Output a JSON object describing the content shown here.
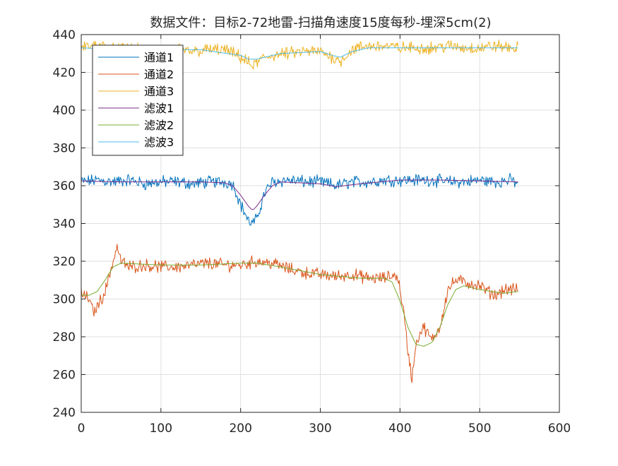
{
  "chart_data": {
    "type": "line",
    "title": "数据文件：目标2-72地雷-扫描角速度15度每秒-埋深5cm(2)",
    "xlabel": "",
    "ylabel": "",
    "xlim": [
      0,
      600
    ],
    "ylim": [
      240,
      440
    ],
    "xticks": [
      0,
      100,
      200,
      300,
      400,
      500,
      600
    ],
    "yticks": [
      240,
      260,
      280,
      300,
      320,
      340,
      360,
      380,
      400,
      420,
      440
    ],
    "grid": true,
    "legend_position": "top-left",
    "series": [
      {
        "name": "通道1",
        "color": "#0072BD",
        "kind": "raw",
        "x": [
          0,
          20,
          40,
          60,
          80,
          100,
          120,
          140,
          160,
          180,
          190,
          195,
          200,
          205,
          210,
          215,
          220,
          225,
          230,
          240,
          260,
          280,
          300,
          320,
          340,
          360,
          380,
          400,
          420,
          440,
          460,
          480,
          500,
          520,
          540,
          548
        ],
        "y": [
          362,
          363,
          362,
          363,
          361,
          362,
          362,
          361,
          362,
          362,
          361,
          356,
          350,
          346,
          341,
          340,
          342,
          349,
          356,
          362,
          363,
          362,
          362,
          360,
          362,
          362,
          363,
          363,
          363,
          363,
          362,
          362,
          363,
          362,
          363,
          361
        ]
      },
      {
        "name": "通道2",
        "color": "#D95319",
        "kind": "raw",
        "x": [
          0,
          10,
          15,
          20,
          30,
          40,
          45,
          50,
          60,
          80,
          100,
          120,
          140,
          160,
          180,
          200,
          220,
          240,
          260,
          280,
          300,
          320,
          340,
          360,
          380,
          395,
          400,
          405,
          410,
          415,
          420,
          425,
          430,
          440,
          450,
          460,
          470,
          480,
          490,
          500,
          510,
          520,
          530,
          540,
          548
        ],
        "y": [
          303,
          300,
          293,
          296,
          304,
          320,
          328,
          320,
          317,
          318,
          317,
          317,
          318,
          319,
          318,
          318,
          320,
          319,
          316,
          314,
          313,
          312,
          313,
          311,
          311,
          313,
          306,
          292,
          272,
          258,
          276,
          282,
          285,
          278,
          285,
          305,
          310,
          309,
          308,
          307,
          304,
          302,
          305,
          305,
          305
        ]
      },
      {
        "name": "通道3",
        "color": "#EDB120",
        "kind": "raw",
        "x": [
          0,
          20,
          40,
          60,
          80,
          100,
          120,
          140,
          160,
          180,
          200,
          210,
          215,
          220,
          230,
          240,
          260,
          280,
          300,
          320,
          325,
          330,
          340,
          360,
          380,
          400,
          420,
          440,
          460,
          480,
          500,
          520,
          540,
          548
        ],
        "y": [
          433,
          435,
          432,
          433,
          431,
          432,
          432,
          431,
          432,
          432,
          428,
          425,
          423,
          425,
          428,
          429,
          430,
          431,
          431,
          427,
          426,
          428,
          432,
          434,
          434,
          433,
          433,
          433,
          434,
          433,
          433,
          434,
          433,
          433
        ]
      },
      {
        "name": "滤波1",
        "color": "#7E2F8E",
        "kind": "smooth",
        "x": [
          0,
          50,
          100,
          150,
          180,
          190,
          200,
          210,
          215,
          220,
          230,
          240,
          250,
          300,
          320,
          330,
          350,
          400,
          450,
          500,
          548
        ],
        "y": [
          362.5,
          362,
          362,
          362,
          361.5,
          360,
          355,
          349,
          347,
          349,
          355,
          360,
          362,
          361,
          359.5,
          360,
          361,
          363,
          363,
          362.5,
          362
        ]
      },
      {
        "name": "滤波2",
        "color": "#77AC30",
        "kind": "smooth",
        "x": [
          0,
          10,
          20,
          30,
          40,
          50,
          100,
          150,
          200,
          220,
          250,
          300,
          350,
          380,
          390,
          400,
          410,
          420,
          430,
          440,
          450,
          460,
          470,
          480,
          500,
          530,
          548
        ],
        "y": [
          302,
          302,
          304,
          310,
          317,
          319,
          318,
          318,
          319,
          319,
          317,
          313,
          311,
          311,
          309,
          299,
          285,
          276,
          275,
          277,
          285,
          297,
          305,
          307,
          305,
          303,
          304
        ]
      },
      {
        "name": "滤波3",
        "color": "#4DBEEE",
        "kind": "smooth",
        "x": [
          0,
          50,
          100,
          150,
          200,
          210,
          220,
          230,
          250,
          300,
          315,
          325,
          340,
          360,
          400,
          450,
          500,
          548
        ],
        "y": [
          433,
          432,
          432,
          432,
          429,
          427,
          427,
          428,
          430,
          431,
          429,
          428,
          431,
          433,
          433,
          433,
          433,
          433
        ]
      }
    ]
  }
}
